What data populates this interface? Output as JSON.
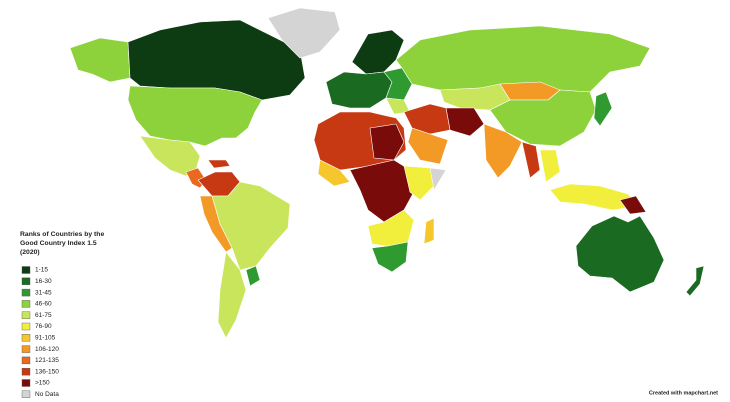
{
  "legend": {
    "title_lines": [
      "Ranks of Countries by the",
      "Good Country Index 1.5",
      "(2020)"
    ],
    "items": [
      {
        "label": "1-15",
        "color": "#0d3b12"
      },
      {
        "label": "16-30",
        "color": "#1b6a21"
      },
      {
        "label": "31-45",
        "color": "#2f9a2f"
      },
      {
        "label": "46-60",
        "color": "#8ed23b"
      },
      {
        "label": "61-75",
        "color": "#c9e55b"
      },
      {
        "label": "76-90",
        "color": "#f1ee3c"
      },
      {
        "label": "91-105",
        "color": "#f6c62d"
      },
      {
        "label": "106-120",
        "color": "#f39a26"
      },
      {
        "label": "121-135",
        "color": "#e8691f"
      },
      {
        "label": "136-150",
        "color": "#c73913"
      },
      {
        "label": ">150",
        "color": "#790b0b"
      },
      {
        "label": "No Data",
        "color": "#d4d4d4"
      }
    ]
  },
  "credit": "Created with mapchart.net"
}
